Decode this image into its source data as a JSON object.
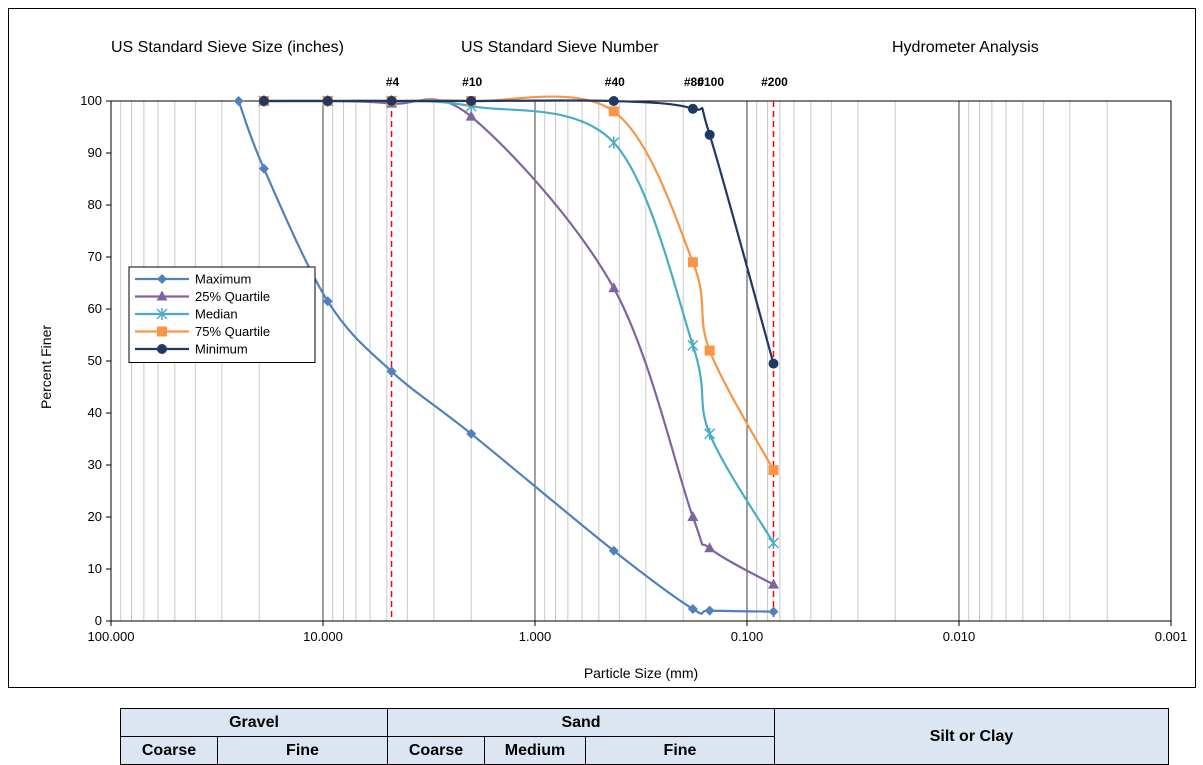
{
  "headers": {
    "sieve_size": "US Standard Sieve Size (inches)",
    "sieve_number": "US Standard Sieve Number",
    "hydrometer": "Hydrometer Analysis"
  },
  "sieve_labels": [
    {
      "label": "#4",
      "size_mm": 4.75
    },
    {
      "label": "#10",
      "size_mm": 2.0
    },
    {
      "label": "#40",
      "size_mm": 0.425
    },
    {
      "label": "#80",
      "size_mm": 0.18
    },
    {
      "label": "#100",
      "size_mm": 0.15
    },
    {
      "label": "#200",
      "size_mm": 0.075
    }
  ],
  "chart_data": {
    "type": "line",
    "xlabel": "Particle Size (mm)",
    "ylabel": "Percent Finer",
    "x_scale": "log-reversed",
    "xlim": [
      100,
      0.001
    ],
    "ylim": [
      0,
      100
    ],
    "x_ticks": [
      "100.000",
      "10.000",
      "1.000",
      "0.100",
      "0.010",
      "0.001"
    ],
    "y_ticks": [
      0,
      10,
      20,
      30,
      40,
      50,
      60,
      70,
      80,
      90,
      100
    ],
    "reference_lines_mm": [
      4.75,
      0.075
    ],
    "legend_position": "left",
    "series": [
      {
        "name": "Maximum",
        "color": "#4f81bd",
        "marker": "diamond",
        "x": [
          25,
          19,
          9.5,
          4.75,
          2.0,
          0.425,
          0.18,
          0.15,
          0.075
        ],
        "y": [
          100,
          87,
          61.5,
          48,
          36,
          13.5,
          2.3,
          2,
          1.8
        ]
      },
      {
        "name": "25% Quartile",
        "color": "#8064a2",
        "marker": "triangle",
        "x": [
          19,
          9.5,
          4.75,
          2.0,
          0.425,
          0.18,
          0.15,
          0.075
        ],
        "y": [
          100,
          100,
          99.5,
          97,
          64,
          20,
          14,
          7
        ]
      },
      {
        "name": "Median",
        "color": "#4bacc6",
        "marker": "asterisk",
        "x": [
          19,
          9.5,
          4.75,
          2.0,
          0.425,
          0.18,
          0.15,
          0.075
        ],
        "y": [
          100,
          100,
          100,
          99,
          92,
          53,
          36,
          15
        ]
      },
      {
        "name": "75% Quartile",
        "color": "#f79646",
        "marker": "square",
        "x": [
          19,
          9.5,
          4.75,
          2.0,
          0.425,
          0.18,
          0.15,
          0.075
        ],
        "y": [
          100,
          100,
          100,
          100,
          98,
          69,
          52,
          29
        ]
      },
      {
        "name": "Minimum",
        "color": "#1f3864",
        "marker": "circle",
        "x": [
          19,
          9.5,
          4.75,
          2.0,
          0.425,
          0.18,
          0.15,
          0.075
        ],
        "y": [
          100,
          100,
          100,
          100,
          100,
          98.5,
          93.5,
          49.5
        ]
      }
    ]
  },
  "classification_table": {
    "gravel": "Gravel",
    "sand": "Sand",
    "silt_clay": "Silt or Clay",
    "gravel_coarse": "Coarse",
    "gravel_fine": "Fine",
    "sand_coarse": "Coarse",
    "sand_medium": "Medium",
    "sand_fine": "Fine"
  }
}
